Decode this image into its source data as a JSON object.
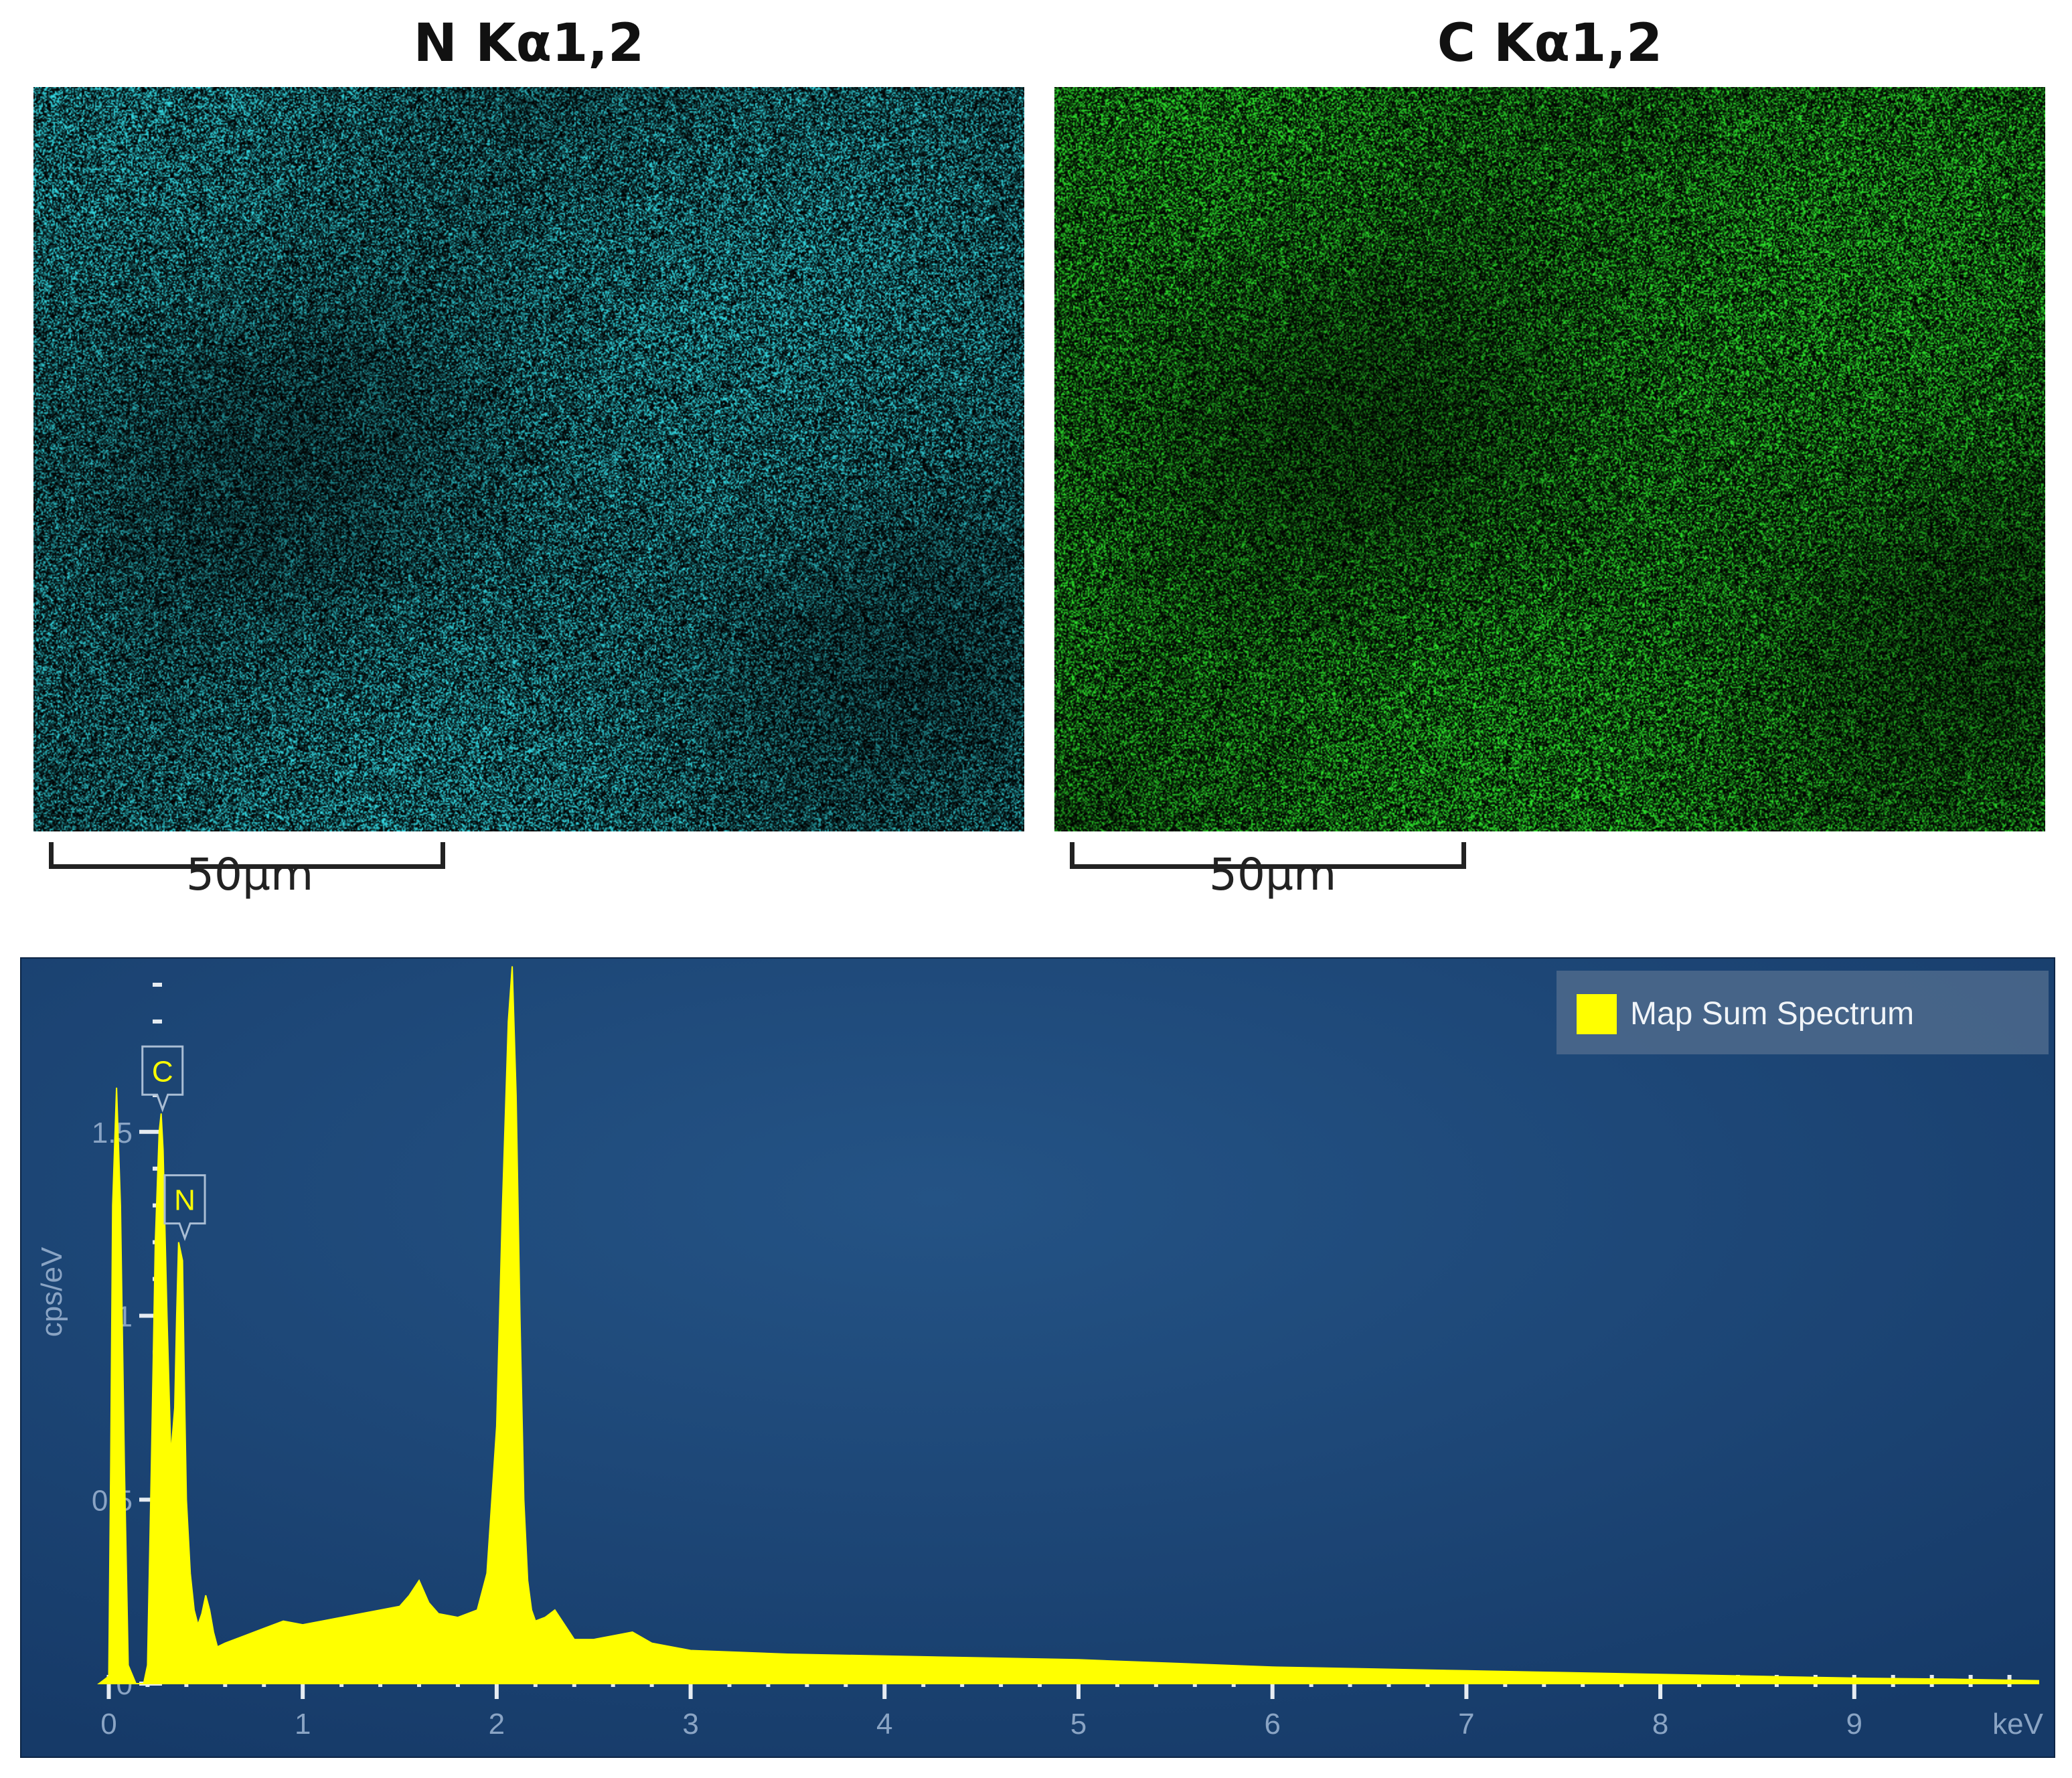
{
  "maps": [
    {
      "element": "N",
      "title": "N Kα1,2",
      "color": "#33d6e0",
      "scale_label": "50µm"
    },
    {
      "element": "C",
      "title": "C Kα1,2",
      "color": "#2ee62e",
      "scale_label": "50µm"
    }
  ],
  "chart_data": {
    "type": "area",
    "title": "",
    "xlabel": "keV",
    "ylabel": "cps/eV",
    "xlim": [
      -0.05,
      9.95
    ],
    "ylim": [
      0,
      1.92
    ],
    "x_ticks": [
      0,
      1,
      2,
      3,
      4,
      5,
      6,
      7,
      8,
      9
    ],
    "x_tick_labels": [
      "0",
      "1",
      "2",
      "3",
      "4",
      "5",
      "6",
      "7",
      "8",
      "9"
    ],
    "y_ticks": [
      0,
      0.5,
      1,
      1.5
    ],
    "y_tick_labels": [
      "0",
      "0.5",
      "1",
      "1.5"
    ],
    "grid": false,
    "legend": {
      "position": "top-right",
      "entries": [
        "Map Sum Spectrum"
      ]
    },
    "series": [
      {
        "name": "Map Sum Spectrum",
        "color": "#ffff00",
        "x": [
          -0.05,
          0.0,
          0.01,
          0.02,
          0.04,
          0.06,
          0.08,
          0.1,
          0.14,
          0.18,
          0.2,
          0.22,
          0.24,
          0.26,
          0.27,
          0.28,
          0.3,
          0.32,
          0.34,
          0.35,
          0.36,
          0.38,
          0.39,
          0.4,
          0.42,
          0.44,
          0.46,
          0.48,
          0.5,
          0.52,
          0.54,
          0.56,
          0.6,
          0.7,
          0.8,
          0.9,
          1.0,
          1.1,
          1.2,
          1.3,
          1.4,
          1.5,
          1.55,
          1.6,
          1.65,
          1.7,
          1.8,
          1.9,
          1.95,
          2.0,
          2.03,
          2.06,
          2.08,
          2.1,
          2.12,
          2.14,
          2.16,
          2.18,
          2.2,
          2.25,
          2.3,
          2.35,
          2.4,
          2.5,
          2.6,
          2.7,
          2.8,
          3.0,
          3.5,
          4.0,
          4.5,
          5.0,
          5.5,
          6.0,
          6.5,
          7.0,
          7.5,
          8.0,
          8.5,
          9.0,
          9.5,
          9.95
        ],
        "y": [
          0,
          0.02,
          0.6,
          1.3,
          1.62,
          1.3,
          0.6,
          0.05,
          0,
          0,
          0.05,
          0.6,
          1.2,
          1.5,
          1.55,
          1.45,
          1.0,
          0.62,
          0.75,
          1.0,
          1.2,
          1.15,
          0.8,
          0.5,
          0.3,
          0.2,
          0.16,
          0.19,
          0.24,
          0.2,
          0.14,
          0.1,
          0.11,
          0.13,
          0.15,
          0.17,
          0.16,
          0.17,
          0.18,
          0.19,
          0.2,
          0.21,
          0.24,
          0.28,
          0.22,
          0.19,
          0.18,
          0.2,
          0.3,
          0.7,
          1.3,
          1.8,
          1.95,
          1.6,
          1.0,
          0.5,
          0.28,
          0.2,
          0.17,
          0.18,
          0.2,
          0.16,
          0.12,
          0.12,
          0.13,
          0.14,
          0.11,
          0.09,
          0.08,
          0.075,
          0.07,
          0.065,
          0.055,
          0.045,
          0.04,
          0.035,
          0.03,
          0.025,
          0.02,
          0.015,
          0.012,
          0.008
        ]
      }
    ],
    "annotations": [
      {
        "label": "C",
        "x": 0.277,
        "y": 1.55
      },
      {
        "label": "N",
        "x": 0.392,
        "y": 1.2
      }
    ]
  }
}
